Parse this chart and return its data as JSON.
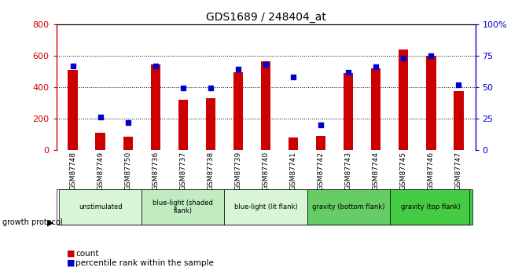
{
  "title": "GDS1689 / 248404_at",
  "samples": [
    "GSM87748",
    "GSM87749",
    "GSM87750",
    "GSM87736",
    "GSM87737",
    "GSM87738",
    "GSM87739",
    "GSM87740",
    "GSM87741",
    "GSM87742",
    "GSM87743",
    "GSM87744",
    "GSM87745",
    "GSM87746",
    "GSM87747"
  ],
  "counts": [
    510,
    110,
    85,
    545,
    320,
    330,
    495,
    565,
    80,
    90,
    490,
    520,
    640,
    600,
    375
  ],
  "percentiles": [
    67,
    26,
    22,
    67,
    49,
    49,
    64,
    68,
    58,
    20,
    62,
    66,
    73,
    75,
    52
  ],
  "ylim_left": [
    0,
    800
  ],
  "ylim_right": [
    0,
    100
  ],
  "yticks_left": [
    0,
    200,
    400,
    600,
    800
  ],
  "yticks_right": [
    0,
    25,
    50,
    75,
    100
  ],
  "bar_color": "#cc0000",
  "dot_color": "#0000cc",
  "groups": [
    {
      "label": "unstimulated",
      "indices": [
        0,
        1,
        2
      ],
      "color": "#d8f5d8"
    },
    {
      "label": "blue-light (shaded\nflank)",
      "indices": [
        3,
        4,
        5
      ],
      "color": "#c0ecc0"
    },
    {
      "label": "blue-light (lit flank)",
      "indices": [
        6,
        7,
        8
      ],
      "color": "#d8f5d8"
    },
    {
      "label": "gravity (bottom flank)",
      "indices": [
        9,
        10,
        11
      ],
      "color": "#66cc66"
    },
    {
      "label": "gravity (top flank)",
      "indices": [
        12,
        13,
        14
      ],
      "color": "#44cc44"
    }
  ],
  "tick_bg_color": "#c8c8c8",
  "bar_width": 0.35
}
